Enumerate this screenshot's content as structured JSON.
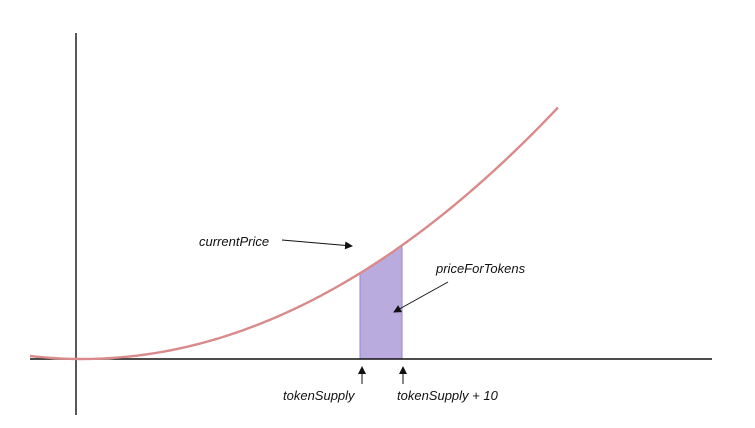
{
  "diagram": {
    "labels": {
      "current_price": "currentPrice",
      "price_for_tokens": "priceForTokens",
      "token_supply": "tokenSupply",
      "token_supply_plus": "tokenSupply + 10"
    },
    "colors": {
      "curve": "#d98a8a",
      "area_fill": "#b3a2dc",
      "area_stroke": "#9a86d2",
      "axis": "#111111",
      "background": "#ffffff"
    }
  }
}
